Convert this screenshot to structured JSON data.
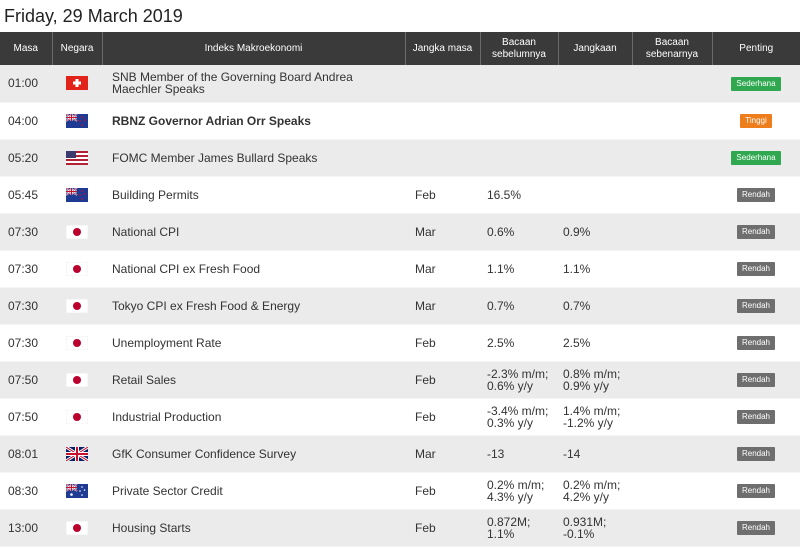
{
  "date_title": "Friday, 29 March 2019",
  "headers": {
    "time": "Masa",
    "country": "Negara",
    "event": "Indeks Makroekonomi",
    "period": "Jangka masa",
    "previous": "Bacaan sebelumnya",
    "forecast": "Jangkaan",
    "actual": "Bacaan sebenarnya",
    "importance": "Penting"
  },
  "rows": [
    {
      "time": "01:00",
      "flag": "ch-flag-icon",
      "event": "SNB Member of the Governing Board Andrea Maechler Speaks",
      "bold": false,
      "period": "",
      "previous": "",
      "forecast": "",
      "actual": "",
      "importance": "Sederhana",
      "badge_color": "#2fa84f"
    },
    {
      "time": "04:00",
      "flag": "nz-flag-icon",
      "event": "RBNZ Governor Adrian Orr Speaks",
      "bold": true,
      "period": "",
      "previous": "",
      "forecast": "",
      "actual": "",
      "importance": "Tinggi",
      "badge_color": "#ee7d1c"
    },
    {
      "time": "05:20",
      "flag": "us-flag-icon",
      "event": "FOMC Member James Bullard Speaks",
      "bold": false,
      "period": "",
      "previous": "",
      "forecast": "",
      "actual": "",
      "importance": "Sederhana",
      "badge_color": "#2fa84f"
    },
    {
      "time": "05:45",
      "flag": "nz-flag-icon",
      "event": "Building Permits",
      "bold": false,
      "period": "Feb",
      "previous": "16.5%",
      "forecast": "",
      "actual": "",
      "importance": "Rendah",
      "badge_color": "#6e6e6e"
    },
    {
      "time": "07:30",
      "flag": "jp-flag-icon",
      "event": "National CPI",
      "bold": false,
      "period": "Mar",
      "previous": "0.6%",
      "forecast": "0.9%",
      "actual": "",
      "importance": "Rendah",
      "badge_color": "#6e6e6e"
    },
    {
      "time": "07:30",
      "flag": "jp-flag-icon",
      "event": "National CPI ex Fresh Food",
      "bold": false,
      "period": "Mar",
      "previous": "1.1%",
      "forecast": "1.1%",
      "actual": "",
      "importance": "Rendah",
      "badge_color": "#6e6e6e"
    },
    {
      "time": "07:30",
      "flag": "jp-flag-icon",
      "event": "Tokyo CPI ex Fresh Food & Energy",
      "bold": false,
      "period": "Mar",
      "previous": "0.7%",
      "forecast": "0.7%",
      "actual": "",
      "importance": "Rendah",
      "badge_color": "#6e6e6e"
    },
    {
      "time": "07:30",
      "flag": "jp-flag-icon",
      "event": "Unemployment Rate",
      "bold": false,
      "period": "Feb",
      "previous": "2.5%",
      "forecast": "2.5%",
      "actual": "",
      "importance": "Rendah",
      "badge_color": "#6e6e6e"
    },
    {
      "time": "07:50",
      "flag": "jp-flag-icon",
      "event": "Retail Sales",
      "bold": false,
      "period": "Feb",
      "previous": "-2.3% m/m; 0.6% y/y",
      "forecast": "0.8% m/m; 0.9% y/y",
      "actual": "",
      "importance": "Rendah",
      "badge_color": "#6e6e6e"
    },
    {
      "time": "07:50",
      "flag": "jp-flag-icon",
      "event": "Industrial Production",
      "bold": false,
      "period": "Feb",
      "previous": "-3.4% m/m; 0.3% y/y",
      "forecast": "1.4% m/m; -1.2% y/y",
      "actual": "",
      "importance": "Rendah",
      "badge_color": "#6e6e6e"
    },
    {
      "time": "08:01",
      "flag": "uk-flag-icon",
      "event": "GfK Consumer Confidence Survey",
      "bold": false,
      "period": "Mar",
      "previous": "-13",
      "forecast": "-14",
      "actual": "",
      "importance": "Rendah",
      "badge_color": "#6e6e6e"
    },
    {
      "time": "08:30",
      "flag": "au-flag-icon",
      "event": "Private Sector Credit",
      "bold": false,
      "period": "Feb",
      "previous": "0.2% m/m; 4.3% y/y",
      "forecast": "0.2% m/m; 4.2% y/y",
      "actual": "",
      "importance": "Rendah",
      "badge_color": "#6e6e6e"
    },
    {
      "time": "13:00",
      "flag": "jp-flag-icon",
      "event": "Housing Starts",
      "bold": false,
      "period": "Feb",
      "previous": "0.872M; 1.1%",
      "forecast": "0.931M; -0.1%",
      "actual": "",
      "importance": "Rendah",
      "badge_color": "#6e6e6e"
    }
  ]
}
